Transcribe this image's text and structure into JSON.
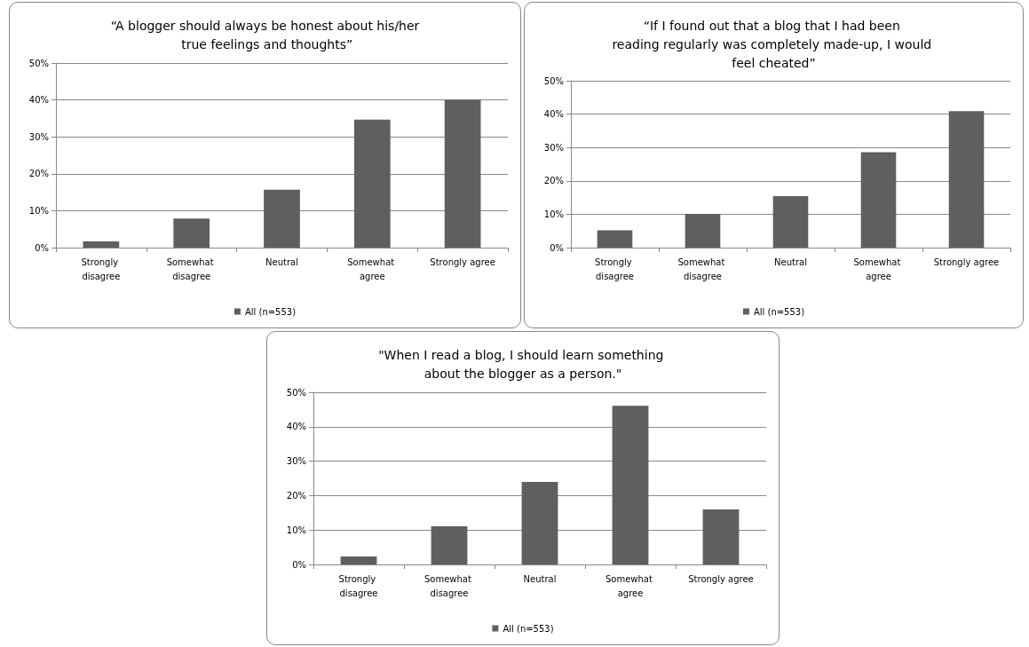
{
  "chart_data": [
    {
      "type": "bar",
      "title": "“A blogger should always be honest about his/her true feelings and thoughts”",
      "categories": [
        "Strongly disagree",
        "Somewhat disagree",
        "Neutral",
        "Somewhat agree",
        "Strongly agree"
      ],
      "series": [
        {
          "name": "All (n=553)",
          "color": "#5f5f5f",
          "values": [
            1.7,
            7.9,
            15.7,
            34.7,
            40.0
          ]
        }
      ],
      "ylim": [
        0,
        50
      ],
      "yticks": [
        {
          "value": 0,
          "label": "0%"
        },
        {
          "value": 10,
          "label": "10%"
        },
        {
          "value": 20,
          "label": "20%"
        },
        {
          "value": 30,
          "label": "30%"
        },
        {
          "value": 40,
          "label": "40%"
        },
        {
          "value": 50,
          "label": "50%"
        }
      ],
      "grid": "y",
      "legend": "bottom"
    },
    {
      "type": "bar",
      "title": "“If I found out that a blog that I had been reading regularly was completely made-up, I would feel cheated”",
      "categories": [
        "Strongly disagree",
        "Somewhat disagree",
        "Neutral",
        "Somewhat agree",
        "Strongly agree"
      ],
      "series": [
        {
          "name": "All (n=553)",
          "color": "#5f5f5f",
          "values": [
            5.2,
            10.1,
            15.4,
            28.6,
            40.9
          ]
        }
      ],
      "ylim": [
        0,
        50
      ],
      "yticks": [
        {
          "value": 0,
          "label": "0%"
        },
        {
          "value": 10,
          "label": "10%"
        },
        {
          "value": 20,
          "label": "20%"
        },
        {
          "value": 30,
          "label": "30%"
        },
        {
          "value": 40,
          "label": "40%"
        },
        {
          "value": 50,
          "label": "50%"
        }
      ],
      "grid": "y",
      "legend": "bottom"
    },
    {
      "type": "bar",
      "title": "\"When I read a blog, I should learn something about the blogger as a person.\"",
      "categories": [
        "Strongly disagree",
        "Somewhat disagree",
        "Neutral",
        "Somewhat agree",
        "Strongly agree"
      ],
      "series": [
        {
          "name": "All (n=553)",
          "color": "#5f5f5f",
          "values": [
            2.3,
            11.1,
            24.0,
            46.1,
            16.0
          ]
        }
      ],
      "ylim": [
        0,
        50
      ],
      "yticks": [
        {
          "value": 0,
          "label": "0%"
        },
        {
          "value": 10,
          "label": "10%"
        },
        {
          "value": 20,
          "label": "20%"
        },
        {
          "value": 30,
          "label": "30%"
        },
        {
          "value": 40,
          "label": "40%"
        },
        {
          "value": 50,
          "label": "50%"
        }
      ],
      "grid": "y",
      "legend": "bottom"
    }
  ]
}
